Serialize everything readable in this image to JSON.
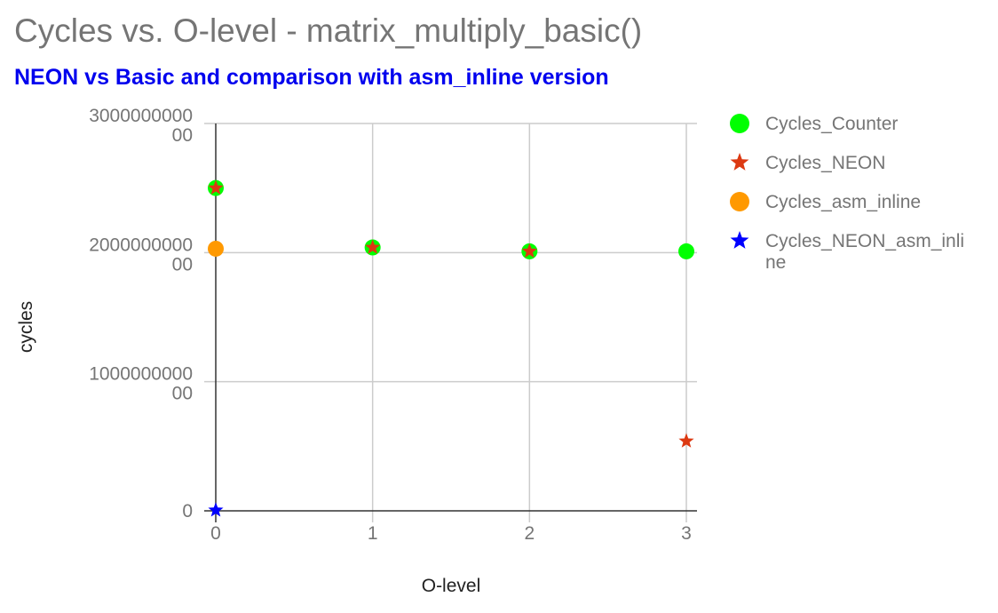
{
  "chart_data": {
    "type": "scatter",
    "title": "Cycles vs. O-level - matrix_multiply_basic()",
    "subtitle": "NEON vs Basic and comparison with asm_inline version",
    "xlabel": "O-level",
    "ylabel": "cycles",
    "xlim": [
      0,
      3
    ],
    "ylim": [
      0,
      300000000000
    ],
    "x_ticks": [
      {
        "value": 0,
        "label": "0"
      },
      {
        "value": 1,
        "label": "1"
      },
      {
        "value": 2,
        "label": "2"
      },
      {
        "value": 3,
        "label": "3"
      }
    ],
    "y_ticks": [
      {
        "value": 0,
        "label": "0"
      },
      {
        "value": 100000000000,
        "label": "100000000000"
      },
      {
        "value": 200000000000,
        "label": "200000000000"
      },
      {
        "value": 300000000000,
        "label": "300000000000"
      }
    ],
    "grid": true,
    "legend_position": "right",
    "series": [
      {
        "name": "Cycles_Counter",
        "color": "#00ff00",
        "marker": "circle",
        "points": [
          {
            "x": 0,
            "y": 250000000000
          },
          {
            "x": 1,
            "y": 204000000000
          },
          {
            "x": 2,
            "y": 201000000000
          },
          {
            "x": 3,
            "y": 201000000000
          }
        ]
      },
      {
        "name": "Cycles_NEON",
        "color": "#dc3912",
        "marker": "star",
        "points": [
          {
            "x": 0,
            "y": 250000000000
          },
          {
            "x": 1,
            "y": 204000000000
          },
          {
            "x": 2,
            "y": 201000000000
          },
          {
            "x": 3,
            "y": 54000000000
          }
        ]
      },
      {
        "name": "Cycles_asm_inline",
        "color": "#ff9900",
        "marker": "circle",
        "points": [
          {
            "x": 0,
            "y": 203000000000
          }
        ]
      },
      {
        "name": "Cycles_NEON_asm_inline",
        "color": "#0000ff",
        "marker": "star",
        "points": [
          {
            "x": 0,
            "y": 500000000
          }
        ]
      }
    ]
  }
}
